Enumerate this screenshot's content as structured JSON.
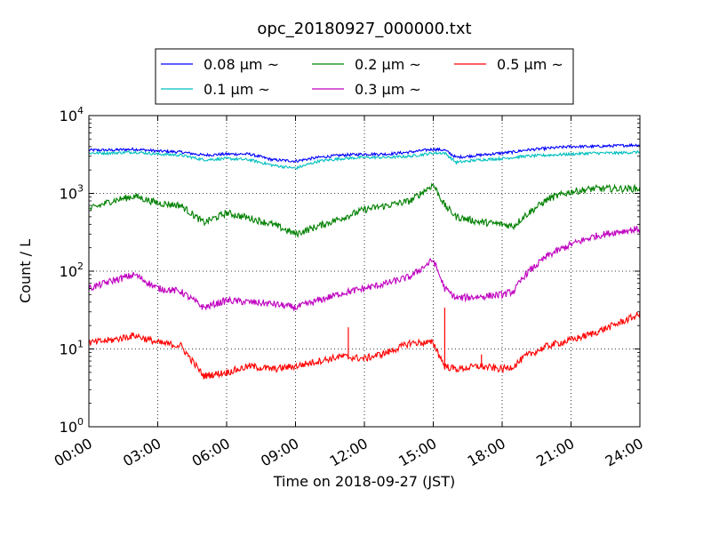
{
  "chart_data": {
    "type": "line",
    "title": "opc_20180927_000000.txt",
    "xlabel": "Time on 2018-09-27 (JST)",
    "ylabel": "Count / L",
    "xlim": [
      0,
      24
    ],
    "ylim": [
      1,
      10000
    ],
    "yscale": "log",
    "grid": true,
    "legend_position": "top (above plot)",
    "x_ticks": [
      0,
      3,
      6,
      9,
      12,
      15,
      18,
      21,
      24
    ],
    "x_tick_labels": [
      "00:00",
      "03:00",
      "06:00",
      "09:00",
      "12:00",
      "15:00",
      "18:00",
      "21:00",
      "24:00"
    ],
    "y_ticks": [
      1,
      10,
      100,
      1000,
      10000
    ],
    "y_tick_labels": [
      {
        "base": "10",
        "exp": "0"
      },
      {
        "base": "10",
        "exp": "1"
      },
      {
        "base": "10",
        "exp": "2"
      },
      {
        "base": "10",
        "exp": "3"
      },
      {
        "base": "10",
        "exp": "4"
      }
    ],
    "x": [
      0,
      1,
      2,
      3,
      4,
      5,
      6,
      7,
      8,
      9,
      10,
      11,
      12,
      13,
      14,
      15,
      15.5,
      16,
      17,
      18,
      18.5,
      19,
      20,
      21,
      22,
      23,
      24
    ],
    "series": [
      {
        "name": "0.08 μm ~",
        "color": "#0000ff",
        "values": [
          3600,
          3600,
          3700,
          3500,
          3400,
          3100,
          3200,
          3200,
          2700,
          2600,
          2900,
          3100,
          3200,
          3200,
          3400,
          3700,
          3600,
          2900,
          3100,
          3300,
          3400,
          3600,
          3800,
          4000,
          4000,
          4100,
          4200
        ]
      },
      {
        "name": "0.1 μm ~",
        "color": "#00bfbf",
        "values": [
          3300,
          3300,
          3400,
          3200,
          3100,
          2700,
          2800,
          2700,
          2300,
          2100,
          2600,
          2800,
          2900,
          2900,
          3000,
          3300,
          3300,
          2500,
          2700,
          2800,
          2900,
          3000,
          3100,
          3200,
          3300,
          3300,
          3400
        ]
      },
      {
        "name": "0.2 μm ~",
        "color": "#008000",
        "values": [
          620,
          800,
          920,
          750,
          700,
          420,
          560,
          480,
          400,
          300,
          380,
          480,
          620,
          700,
          800,
          1300,
          700,
          500,
          430,
          400,
          380,
          520,
          850,
          1050,
          1150,
          1150,
          1150
        ]
      },
      {
        "name": "0.3 μm ~",
        "color": "#bf00bf",
        "values": [
          60,
          75,
          90,
          60,
          55,
          34,
          42,
          40,
          38,
          34,
          42,
          52,
          60,
          70,
          85,
          140,
          60,
          45,
          47,
          50,
          55,
          90,
          160,
          220,
          280,
          320,
          350
        ]
      },
      {
        "name": "0.5 μm ~",
        "color": "#ff0000",
        "values": [
          12,
          13,
          15,
          12,
          11,
          4.5,
          5,
          6,
          5.5,
          6,
          7,
          8,
          7.5,
          9,
          12,
          12,
          6,
          5.5,
          6,
          5.5,
          6,
          8,
          11,
          13,
          16,
          21,
          28
        ]
      }
    ],
    "spikes": [
      {
        "series": "0.5 μm ~",
        "x": 11.3,
        "y": 19
      },
      {
        "series": "0.5 μm ~",
        "x": 15.5,
        "y": 34
      },
      {
        "series": "0.5 μm ~",
        "x": 17.1,
        "y": 8.5
      }
    ]
  }
}
